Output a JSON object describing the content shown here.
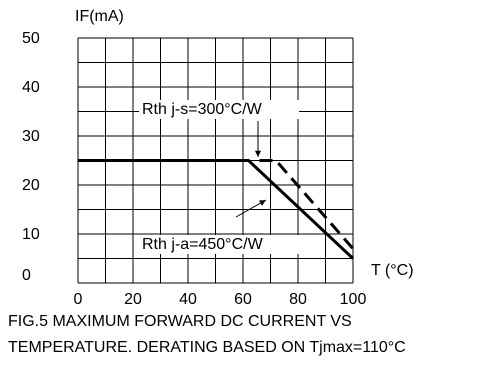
{
  "chart_data": {
    "type": "line",
    "ylabel": "IF(mA)",
    "xlabel": "T (°C)",
    "x_ticks": [
      "0",
      "20",
      "40",
      "60",
      "80",
      "100"
    ],
    "y_ticks": [
      "0",
      "10",
      "20",
      "30",
      "40",
      "50"
    ],
    "xlim": [
      0,
      100
    ],
    "ylim": [
      0,
      50
    ],
    "grid": true,
    "series": [
      {
        "name": "Rth j-a=450°C/W",
        "style": "solid",
        "points": [
          [
            0,
            25
          ],
          [
            62,
            25
          ],
          [
            100,
            5
          ]
        ]
      },
      {
        "name": "Rth j-s=300°C/W",
        "style": "dashed",
        "points": [
          [
            66,
            25
          ],
          [
            72,
            25
          ],
          [
            100,
            7
          ]
        ]
      }
    ],
    "annotations": [
      {
        "text": "Rth j-s=300°C/W",
        "target_series": 1
      },
      {
        "text": "Rth j-a=450°C/W",
        "target_series": 0
      }
    ]
  },
  "caption": {
    "line1": "FIG.5 MAXIMUM FORWARD DC CURRENT VS",
    "line2": "TEMPERATURE. DERATING BASED ON Tjmax=110°C"
  }
}
